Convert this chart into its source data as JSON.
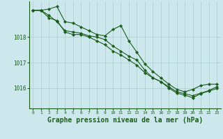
{
  "background_color": "#cce8ec",
  "grid_color": "#aacccc",
  "line_color": "#1a5c1a",
  "marker_color": "#1a5c1a",
  "xlabel": "Graphe pression niveau de la mer (hPa)",
  "xlabel_fontsize": 7.0,
  "xlim": [
    -0.5,
    23.5
  ],
  "ylim": [
    1015.2,
    1019.4
  ],
  "yticks": [
    1016,
    1017,
    1018
  ],
  "xticks": [
    0,
    1,
    2,
    3,
    4,
    5,
    6,
    7,
    8,
    9,
    10,
    11,
    12,
    13,
    14,
    15,
    16,
    17,
    18,
    19,
    20,
    21,
    22,
    23
  ],
  "series1_x": [
    0,
    1,
    2,
    3,
    4,
    5,
    6,
    7,
    8,
    9,
    10,
    11,
    12,
    13,
    14,
    15,
    16,
    17,
    18,
    19,
    20,
    21,
    22,
    23
  ],
  "series1_y": [
    1019.05,
    1019.05,
    1019.1,
    1019.2,
    1018.6,
    1018.55,
    1018.4,
    1018.25,
    1018.1,
    1018.05,
    1018.3,
    1018.45,
    1017.85,
    1017.4,
    1016.95,
    1016.65,
    1016.4,
    1016.15,
    1015.95,
    1015.85,
    1015.95,
    1016.1,
    1016.15,
    1016.15
  ],
  "series2_x": [
    0,
    1,
    2,
    3,
    4,
    5,
    6,
    7,
    8,
    9,
    10,
    11,
    12,
    13,
    14,
    15,
    16,
    17,
    18,
    19,
    20,
    21,
    22,
    23
  ],
  "series2_y": [
    1019.05,
    1019.05,
    1018.85,
    1018.6,
    1018.25,
    1018.2,
    1018.15,
    1018.05,
    1018.0,
    1017.9,
    1017.65,
    1017.45,
    1017.25,
    1017.1,
    1016.7,
    1016.4,
    1016.25,
    1016.05,
    1015.85,
    1015.78,
    1015.7,
    1015.8,
    1015.9,
    1016.05
  ],
  "series3_x": [
    0,
    1,
    2,
    3,
    4,
    5,
    6,
    7,
    8,
    9,
    10,
    11,
    12,
    13,
    14,
    15,
    16,
    17,
    18,
    19,
    20,
    21,
    22,
    23
  ],
  "series3_y": [
    1019.05,
    1019.05,
    1018.75,
    1018.65,
    1018.2,
    1018.1,
    1018.1,
    1018.0,
    1017.85,
    1017.7,
    1017.45,
    1017.3,
    1017.1,
    1016.9,
    1016.6,
    1016.4,
    1016.25,
    1016.0,
    1015.8,
    1015.72,
    1015.62,
    1015.78,
    1015.88,
    1015.98
  ]
}
